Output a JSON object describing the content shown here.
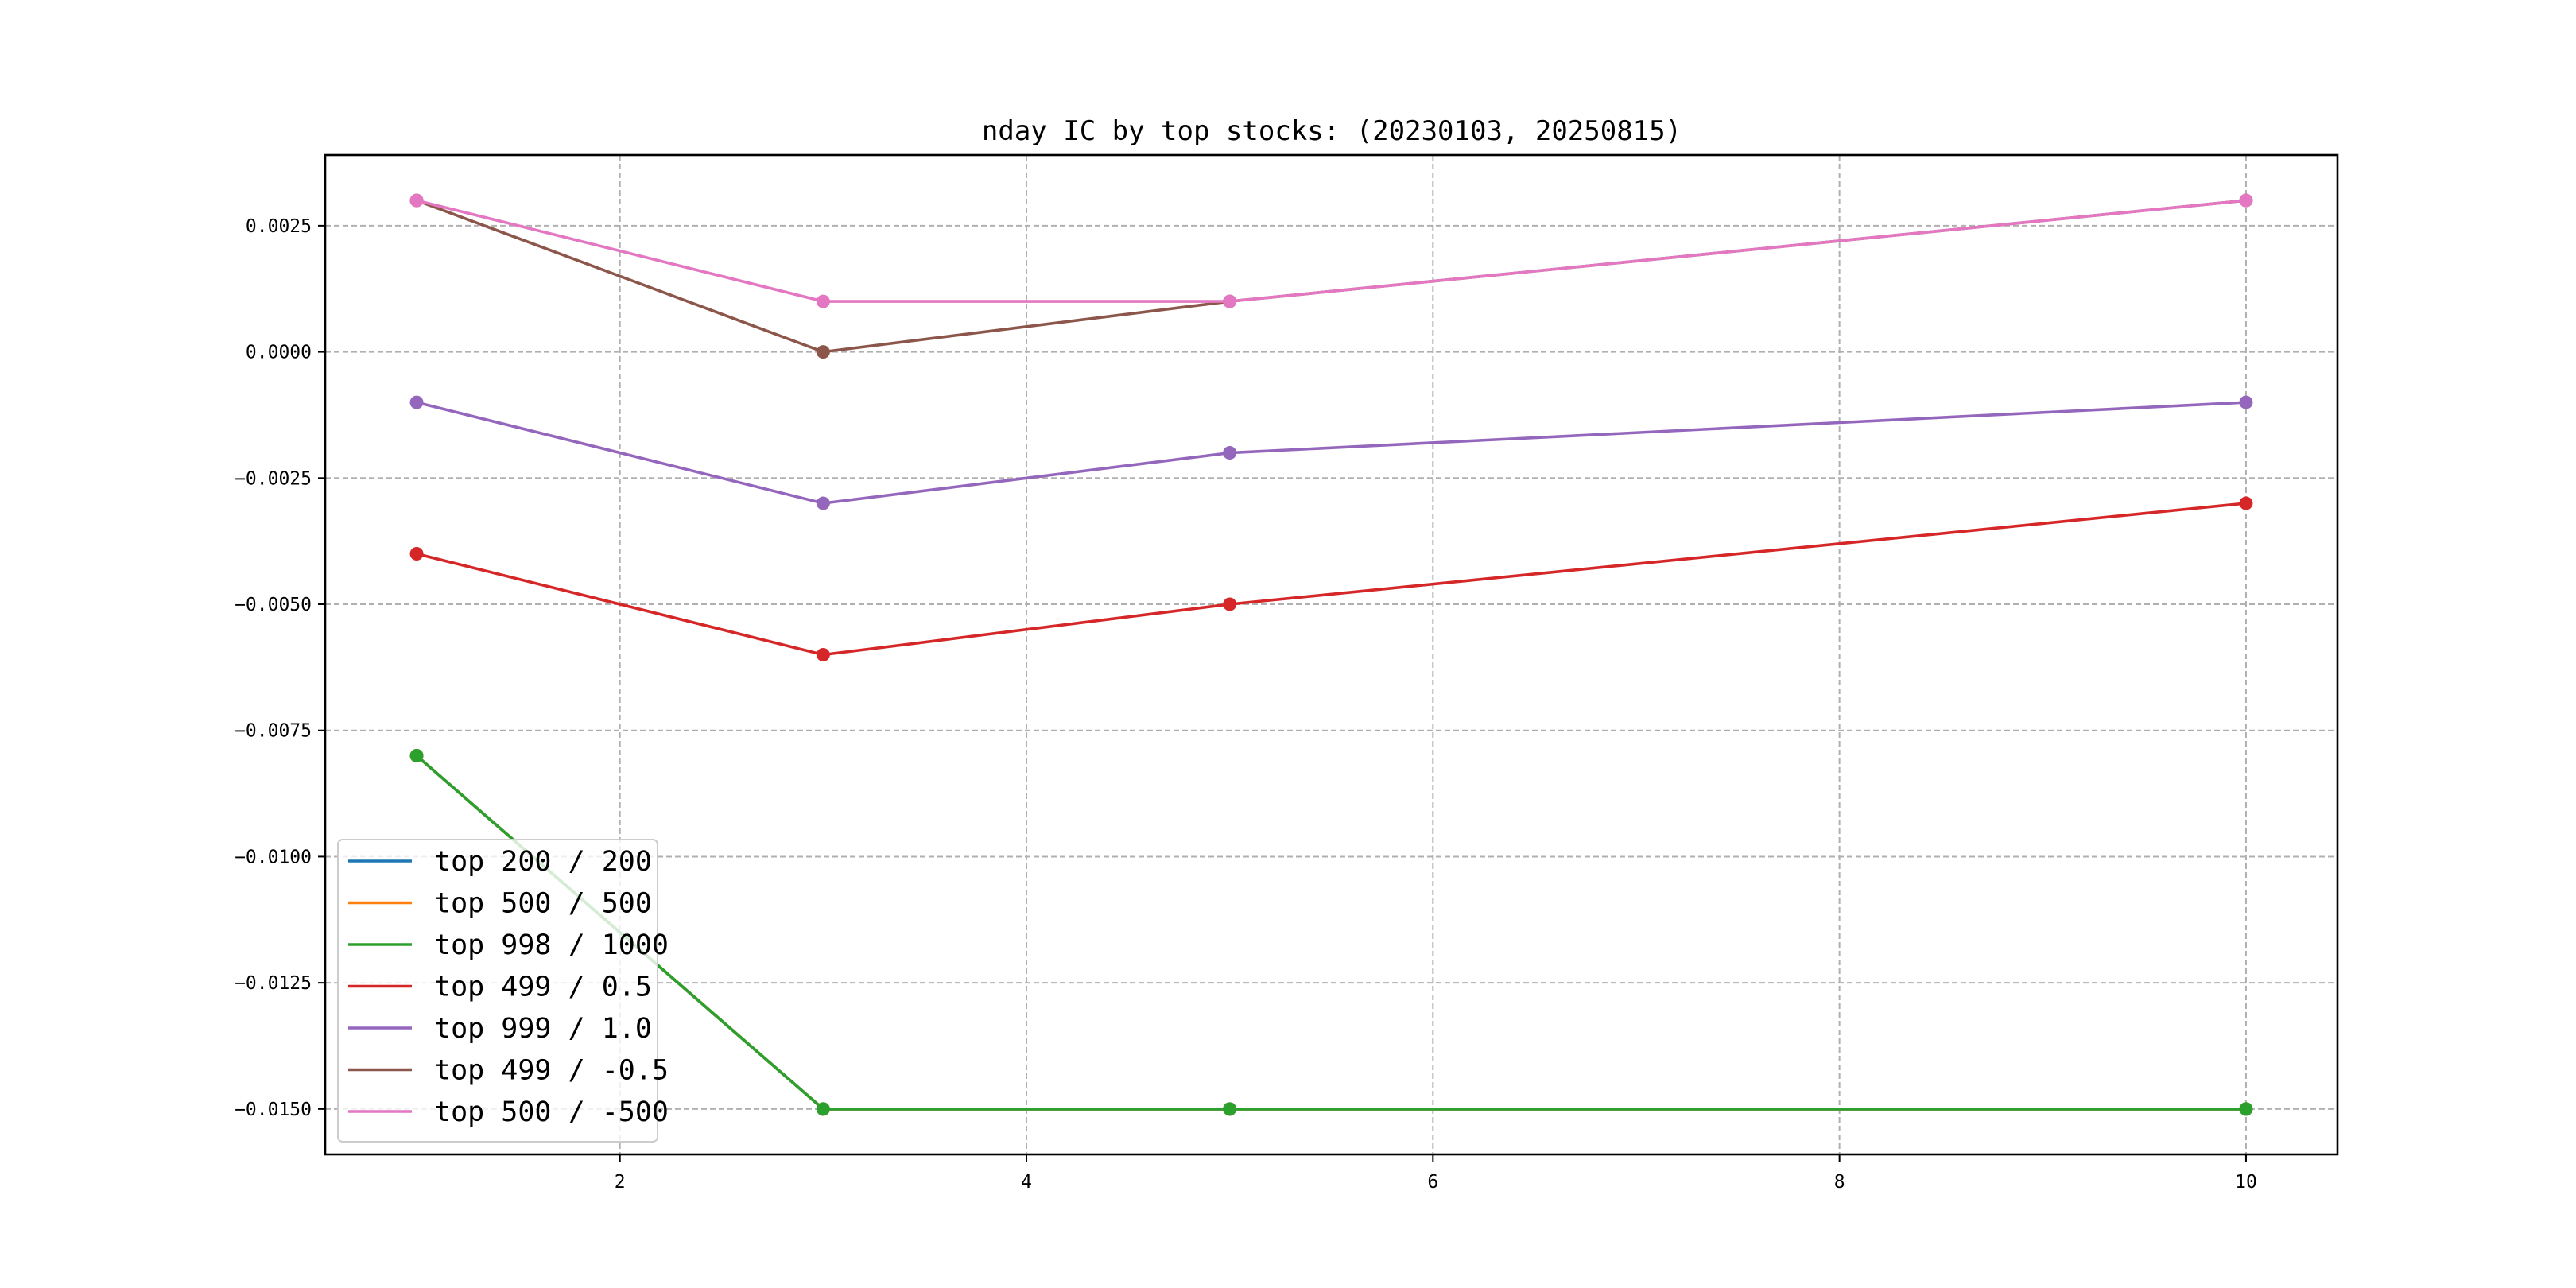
{
  "chart_data": {
    "type": "line",
    "title": "nday IC by top stocks: (20230103, 20250815)",
    "xlabel": "",
    "ylabel": "",
    "x": [
      1,
      3,
      5,
      10
    ],
    "xlim": [
      0.55,
      10.45
    ],
    "ylim": [
      -0.0159,
      0.0039
    ],
    "xticks": [
      2,
      4,
      6,
      8,
      10
    ],
    "xtick_labels": [
      "2",
      "4",
      "6",
      "8",
      "10"
    ],
    "yticks": [
      0.0025,
      0.0,
      -0.0025,
      -0.005,
      -0.0075,
      -0.01,
      -0.0125,
      -0.015
    ],
    "ytick_labels": [
      "0.0025",
      "0.0000",
      "−0.0025",
      "−0.0050",
      "−0.0075",
      "−0.0100",
      "−0.0125",
      "−0.0150"
    ],
    "grid": true,
    "legend_position": "lower-left",
    "series": [
      {
        "name": "top 200 / 200",
        "color": "#1f77b4",
        "values": [
          -0.008,
          -0.015,
          -0.015,
          -0.015
        ]
      },
      {
        "name": "top 500 / 500",
        "color": "#ff7f0e",
        "values": [
          -0.008,
          -0.015,
          -0.015,
          -0.015
        ]
      },
      {
        "name": "top 998 / 1000",
        "color": "#2ca02c",
        "values": [
          -0.008,
          -0.015,
          -0.015,
          -0.015
        ]
      },
      {
        "name": "top 499 / 0.5",
        "color": "#d62728",
        "values": [
          -0.004,
          -0.006,
          -0.005,
          -0.003
        ]
      },
      {
        "name": "top 999 / 1.0",
        "color": "#9467bd",
        "values": [
          -0.001,
          -0.003,
          -0.002,
          -0.001
        ]
      },
      {
        "name": "top 499 / -0.5",
        "color": "#8c564b",
        "values": [
          0.003,
          0.0,
          0.001,
          0.003
        ]
      },
      {
        "name": "top 500 / -500",
        "color": "#e377c2",
        "values": [
          0.003,
          0.001,
          0.001,
          0.003
        ]
      }
    ]
  }
}
